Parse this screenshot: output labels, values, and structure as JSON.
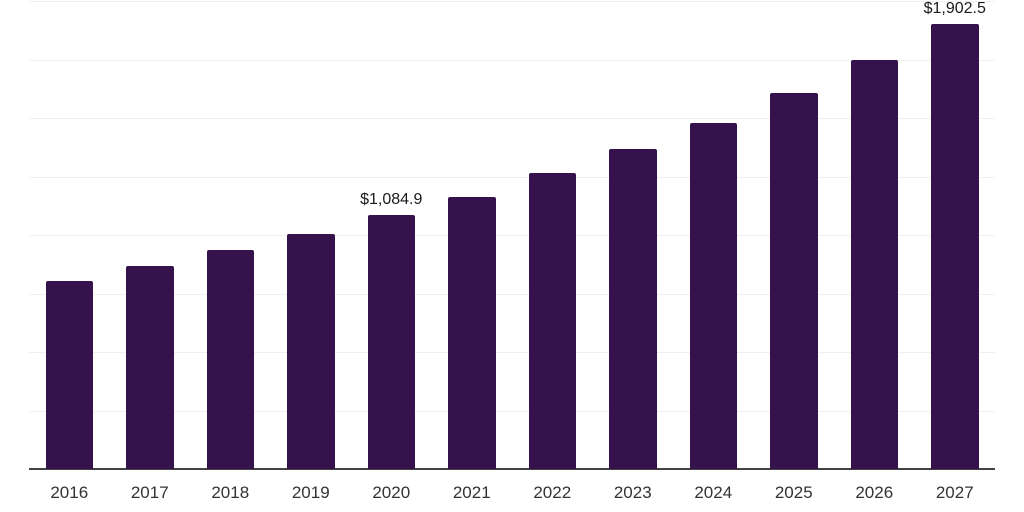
{
  "chart_data": {
    "type": "bar",
    "title": "",
    "xlabel": "",
    "ylabel": "",
    "categories": [
      "2016",
      "2017",
      "2018",
      "2019",
      "2020",
      "2021",
      "2022",
      "2023",
      "2024",
      "2025",
      "2026",
      "2027"
    ],
    "values": [
      805,
      867,
      935,
      1005,
      1084.9,
      1164,
      1264,
      1366,
      1479,
      1606,
      1748,
      1902.5
    ],
    "ylim": [
      0,
      2000
    ],
    "grid": true,
    "grid_step": 250,
    "legend": "none",
    "data_labels": [
      {
        "category": "2020",
        "text": "$1,084.9"
      },
      {
        "category": "2027",
        "text": "$1,902.5"
      }
    ],
    "colors": {
      "bar": "#35124B",
      "gridline": "#EFEFEF",
      "axis_line": "#424242",
      "tick_label": "#333333",
      "data_label": "#1A1A1A",
      "background": "#FFFFFF"
    }
  }
}
